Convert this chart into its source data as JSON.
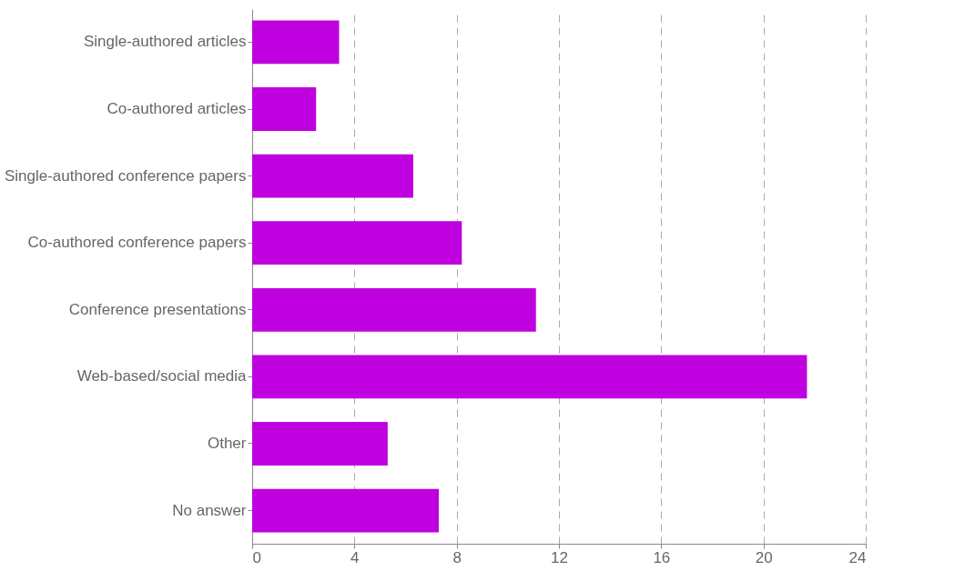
{
  "chart_data": {
    "type": "bar",
    "orientation": "horizontal",
    "categories": [
      "Single-authored articles",
      "Co-authored articles",
      "Single-authored conference papers",
      "Co-authored conference papers",
      "Conference presentations",
      "Web-based/social media",
      "Other",
      "No answer"
    ],
    "values": [
      3.4,
      2.5,
      6.3,
      8.2,
      11.1,
      21.7,
      5.3,
      7.3
    ],
    "color": "#bf00df",
    "xlim": [
      0,
      24
    ],
    "xticks": [
      0,
      4,
      8,
      12,
      16,
      20,
      24
    ],
    "grid": "x"
  }
}
